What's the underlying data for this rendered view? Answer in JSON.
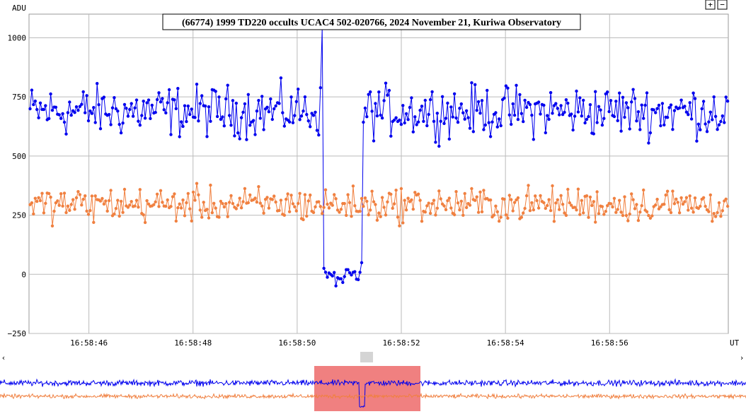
{
  "chart_data": {
    "type": "line",
    "title": "(66774) 1999 TD220 occults UCAC4 502-020766, 2024 November 21, Kuriwa Observatory",
    "ylabel": "ADU",
    "xlabel": "UT",
    "ylim": [
      -250,
      1100
    ],
    "xlim": [
      "16:58:44.85",
      "16:58:58.28"
    ],
    "y_ticks": [
      -250,
      0,
      250,
      500,
      750,
      1000
    ],
    "y_tick_labels": [
      "−250",
      "0",
      "250",
      "500",
      "750",
      "1000"
    ],
    "x_ticks": [
      "16:58:46",
      "16:58:48",
      "16:58:50",
      "16:58:52",
      "16:58:54",
      "16:58:56"
    ],
    "grid": true,
    "legend": "none",
    "sample_interval_s": 0.033,
    "series": [
      {
        "color": "#0000ee",
        "description_values": "target star + asteroid, ~700 ADU baseline, drop to ~0 ADU during occultation",
        "baseline": 690,
        "noise": 95,
        "events": [
          {
            "start": "16:58:50.50",
            "end": "16:58:51.25",
            "level": 0
          }
        ],
        "spike": {
          "x": "16:58:50.48",
          "y": 1040
        }
      },
      {
        "color": "#f08040",
        "baseline": 295,
        "noise": 65,
        "events": []
      }
    ],
    "overview": {
      "highlight_start": "16:58:44.85",
      "highlight_end": "16:58:58.28",
      "highlight_color": "#f08080"
    }
  },
  "controls": {
    "zoom_in_label": "+",
    "zoom_out_label": "−",
    "scroll_left_label": "‹",
    "scroll_right_label": "›"
  }
}
